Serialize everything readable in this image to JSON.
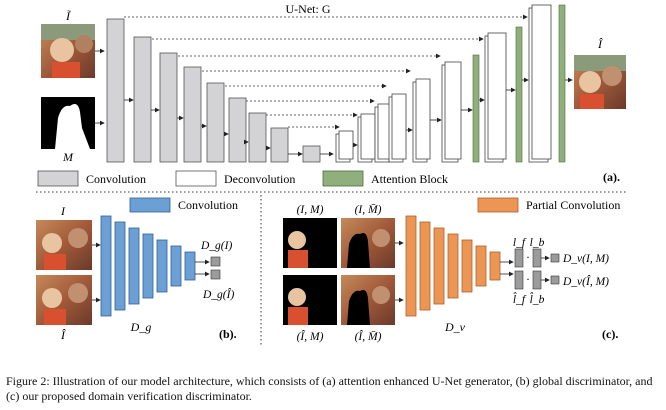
{
  "unet": {
    "title": "U-Net: G",
    "input_label": "Ĩ",
    "mask_label": "M",
    "output_label": "Î",
    "legend": {
      "convolution": "Convolution",
      "deconvolution": "Deconvolution",
      "attention": "Attention Block"
    },
    "panel_label": "(a)."
  },
  "global_disc": {
    "legend": "Convolution",
    "input_top_label": "I",
    "input_bottom_label": "Î",
    "name": "D_g",
    "out_top": "D_g(I)",
    "out_bottom": "D_g(Î)",
    "panel_label": "(b)."
  },
  "domain_disc": {
    "legend": "Partial Convolution",
    "pair_labels": [
      "(I, M)",
      "(I, M̄)",
      "(Î, M)",
      "(Î, M̄)"
    ],
    "name": "D_v",
    "lf": "l_f",
    "lb": "l_b",
    "lf_hat": "l̂_f",
    "lb_hat": "l̂_b",
    "out_top": "D_v(I, M)",
    "out_bottom": "D_v(Î, M)",
    "panel_label": "(c)."
  },
  "caption": "Figure 2: Illustration of our model architecture, which consists of (a) attention enhanced U-Net generator, (b) global discriminator, and (c) our proposed domain verification discriminator.",
  "colors": {
    "conv_gray": "#d3d3d5",
    "deconv_white": "#ffffff",
    "attention_green": "#8fb07c",
    "conv_blue": "#6c9fd4",
    "partial_orange": "#ec9656",
    "out_gray": "#9b9b9b"
  }
}
